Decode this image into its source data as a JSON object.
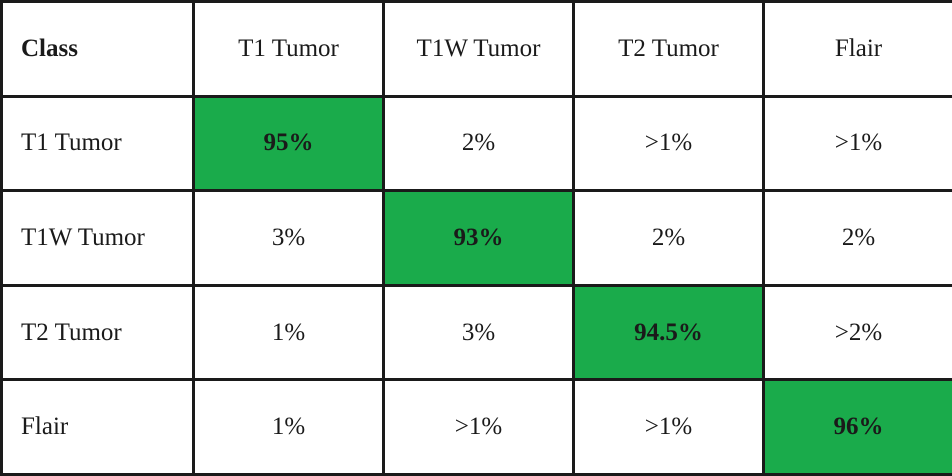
{
  "chart_data": {
    "type": "table",
    "corner_label": "Class",
    "columns": [
      "T1 Tumor",
      "T1W Tumor",
      "T2 Tumor",
      "Flair"
    ],
    "rows": [
      {
        "label": "T1 Tumor",
        "values": [
          "95%",
          "2%",
          ">1%",
          ">1%"
        ]
      },
      {
        "label": "T1W Tumor",
        "values": [
          "3%",
          "93%",
          "2%",
          "2%"
        ]
      },
      {
        "label": "T2 Tumor",
        "values": [
          "1%",
          "3%",
          "94.5%",
          ">2%"
        ]
      },
      {
        "label": "Flair",
        "values": [
          "1%",
          ">1%",
          ">1%",
          "96%"
        ]
      }
    ],
    "highlight": "diagonal",
    "colors": {
      "highlight": "#1aab4b",
      "background": "#ffffff",
      "border": "#1a1a1a",
      "text": "#1a1a1a"
    }
  }
}
